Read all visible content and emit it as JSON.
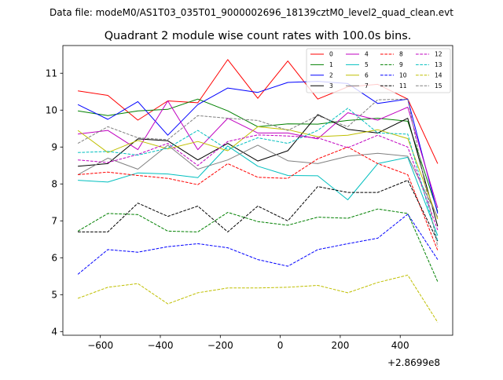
{
  "chart_data": {
    "type": "line",
    "suptitle": "Data file: modeM0/AS1T03_035T01_9000002696_18139cztM0_level2_quad_clean.evt",
    "title": "Quadrant 2 module wise count rates with 100.0s bins.",
    "xlabel": "",
    "ylabel": "",
    "offset_text": "+2.8699e8",
    "xlim": [
      -725,
      575
    ],
    "ylim": [
      3.9,
      11.75
    ],
    "xticks": [
      -600,
      -400,
      -200,
      0,
      200,
      400
    ],
    "xtick_labels": [
      "−600",
      "−400",
      "−200",
      "0",
      "200",
      "400"
    ],
    "yticks": [
      4,
      5,
      6,
      7,
      8,
      9,
      10,
      11
    ],
    "ytick_labels": [
      "4",
      "5",
      "6",
      "7",
      "8",
      "9",
      "10",
      "11"
    ],
    "legend_position": "top-right",
    "x": [
      -675,
      -575,
      -475,
      -375,
      -275,
      -175,
      -75,
      25,
      125,
      225,
      325,
      425,
      525
    ],
    "series": [
      {
        "name": "0",
        "color": "#ff0000",
        "dash": "solid",
        "values": [
          10.52,
          10.4,
          9.73,
          10.25,
          10.2,
          11.37,
          10.32,
          11.33,
          10.3,
          10.63,
          10.7,
          10.3,
          8.55
        ]
      },
      {
        "name": "1",
        "color": "#008000",
        "dash": "solid",
        "values": [
          9.98,
          9.85,
          9.98,
          10.02,
          10.3,
          9.98,
          9.55,
          9.63,
          9.62,
          9.72,
          9.78,
          9.7,
          7.25
        ]
      },
      {
        "name": "2",
        "color": "#0000ff",
        "dash": "solid",
        "values": [
          10.15,
          9.75,
          10.23,
          9.32,
          10.15,
          10.6,
          10.48,
          10.75,
          10.78,
          10.72,
          10.18,
          10.3,
          7.2
        ]
      },
      {
        "name": "3",
        "color": "#000000",
        "dash": "solid",
        "values": [
          8.48,
          8.55,
          9.22,
          9.17,
          8.65,
          9.1,
          8.62,
          8.9,
          9.88,
          9.48,
          9.38,
          9.78,
          6.85
        ]
      },
      {
        "name": "4",
        "color": "#c000c0",
        "dash": "solid",
        "values": [
          9.35,
          9.45,
          8.93,
          10.25,
          8.93,
          9.78,
          9.38,
          9.38,
          9.22,
          9.93,
          9.73,
          10.08,
          7.35
        ]
      },
      {
        "name": "5",
        "color": "#00bfbf",
        "dash": "solid",
        "values": [
          8.1,
          8.05,
          8.3,
          8.27,
          8.17,
          9.03,
          8.48,
          8.23,
          8.22,
          7.57,
          8.55,
          8.72,
          6.6
        ]
      },
      {
        "name": "6",
        "color": "#bfbf00",
        "dash": "solid",
        "values": [
          9.45,
          8.85,
          9.18,
          8.95,
          9.15,
          8.9,
          9.55,
          9.47,
          9.28,
          9.32,
          9.47,
          9.23,
          7.05
        ]
      },
      {
        "name": "7",
        "color": "#808080",
        "dash": "solid",
        "values": [
          8.25,
          8.7,
          8.4,
          9.05,
          8.4,
          8.65,
          9.05,
          8.63,
          8.55,
          8.75,
          8.83,
          8.75,
          7.1
        ]
      },
      {
        "name": "8",
        "color": "#ff0000",
        "dash": "dashed",
        "values": [
          8.25,
          8.32,
          8.23,
          8.15,
          7.98,
          8.55,
          8.18,
          8.15,
          8.68,
          9.0,
          8.55,
          8.25,
          6.2
        ]
      },
      {
        "name": "9",
        "color": "#008000",
        "dash": "dashed",
        "values": [
          6.72,
          7.2,
          7.17,
          6.72,
          6.7,
          7.23,
          6.98,
          6.88,
          7.1,
          7.07,
          7.32,
          7.2,
          5.35
        ]
      },
      {
        "name": "10",
        "color": "#0000ff",
        "dash": "dashed",
        "values": [
          5.55,
          6.22,
          6.15,
          6.3,
          6.38,
          6.27,
          5.95,
          5.77,
          6.22,
          6.38,
          6.53,
          7.18,
          5.95
        ]
      },
      {
        "name": "11",
        "color": "#000000",
        "dash": "dashed",
        "values": [
          6.7,
          6.7,
          7.48,
          7.12,
          7.4,
          6.7,
          7.4,
          7.0,
          7.93,
          7.77,
          7.77,
          8.1,
          6.45
        ]
      },
      {
        "name": "12",
        "color": "#c000c0",
        "dash": "dashed",
        "values": [
          8.65,
          8.58,
          8.8,
          9.1,
          8.5,
          9.15,
          9.33,
          9.3,
          9.25,
          8.98,
          9.32,
          9.0,
          6.75
        ]
      },
      {
        "name": "13",
        "color": "#00bfbf",
        "dash": "dashed",
        "values": [
          8.85,
          8.88,
          8.78,
          8.97,
          9.45,
          8.93,
          9.25,
          9.1,
          9.45,
          10.05,
          9.38,
          9.35,
          6.45
        ]
      },
      {
        "name": "14",
        "color": "#bfbf00",
        "dash": "dashed",
        "values": [
          4.9,
          5.2,
          5.3,
          4.75,
          5.05,
          5.18,
          5.18,
          5.2,
          5.25,
          5.05,
          5.33,
          5.53,
          4.25
        ]
      },
      {
        "name": "15",
        "color": "#808080",
        "dash": "dashed",
        "values": [
          9.1,
          9.55,
          9.25,
          9.2,
          9.85,
          9.78,
          9.72,
          9.45,
          9.85,
          9.55,
          10.28,
          10.3,
          6.3
        ]
      }
    ]
  }
}
